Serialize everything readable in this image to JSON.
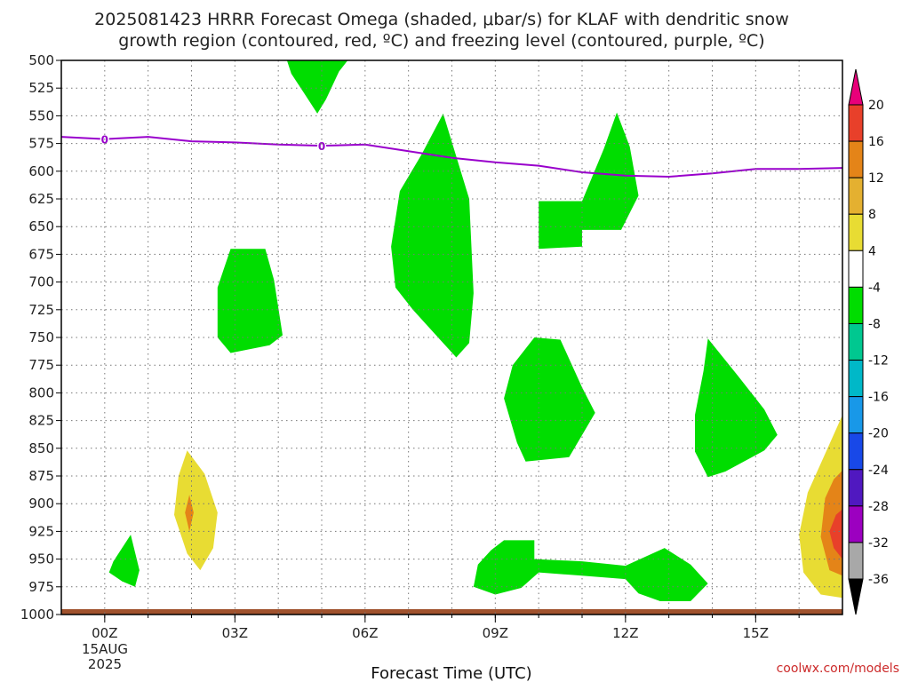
{
  "chart_data": {
    "type": "heatmap",
    "title_lines": [
      "2025081423 HRRR Forecast Omega (shaded, μbar/s) for KLAF with dendritic snow",
      "growth region (contoured, red, ºC) and freezing level (contoured, purple, ºC)"
    ],
    "xlabel": "Forecast Time (UTC)",
    "x_ticks": [
      {
        "label": "00Z",
        "hour": 0
      },
      {
        "label": "03Z",
        "hour": 3
      },
      {
        "label": "06Z",
        "hour": 6
      },
      {
        "label": "09Z",
        "hour": 9
      },
      {
        "label": "12Z",
        "hour": 12
      },
      {
        "label": "15Z",
        "hour": 15
      }
    ],
    "x_subtitle": [
      "15AUG",
      "2025"
    ],
    "xlim": [
      -1,
      17
    ],
    "y_ticks": [
      500,
      525,
      550,
      575,
      600,
      625,
      650,
      675,
      700,
      725,
      750,
      775,
      800,
      825,
      850,
      875,
      900,
      925,
      950,
      975,
      1000
    ],
    "ylim": [
      500,
      1000
    ],
    "freezing_level": {
      "color": "#9900cc",
      "label": "0",
      "points": [
        [
          -1,
          569
        ],
        [
          0,
          571
        ],
        [
          1,
          569
        ],
        [
          2,
          573
        ],
        [
          3,
          574
        ],
        [
          4,
          576
        ],
        [
          5,
          577
        ],
        [
          6,
          576
        ],
        [
          7,
          582
        ],
        [
          8,
          588
        ],
        [
          9,
          592
        ],
        [
          10,
          595
        ],
        [
          11,
          601
        ],
        [
          12,
          604
        ],
        [
          13,
          605
        ],
        [
          14,
          602
        ],
        [
          15,
          598
        ],
        [
          16,
          598
        ],
        [
          17,
          597
        ]
      ]
    },
    "omega_regions": [
      {
        "color": "#00dd00",
        "points": [
          [
            4.2,
            500
          ],
          [
            5.6,
            500
          ],
          [
            5.4,
            510
          ],
          [
            5.1,
            535
          ],
          [
            4.9,
            548
          ],
          [
            4.6,
            530
          ],
          [
            4.3,
            512
          ]
        ]
      },
      {
        "color": "#00dd00",
        "points": [
          [
            2.9,
            670
          ],
          [
            3.7,
            670
          ],
          [
            3.9,
            698
          ],
          [
            4.1,
            748
          ],
          [
            3.8,
            757
          ],
          [
            2.9,
            764
          ],
          [
            2.6,
            750
          ],
          [
            2.6,
            705
          ]
        ]
      },
      {
        "color": "#00dd00",
        "points": [
          [
            7.8,
            548
          ],
          [
            8.4,
            625
          ],
          [
            8.5,
            710
          ],
          [
            8.4,
            755
          ],
          [
            8.1,
            768
          ],
          [
            7.1,
            725
          ],
          [
            6.7,
            705
          ],
          [
            6.6,
            668
          ],
          [
            6.8,
            618
          ],
          [
            7.3,
            585
          ]
        ]
      },
      {
        "color": "#00dd00",
        "points": [
          [
            10.0,
            627
          ],
          [
            11.0,
            627
          ],
          [
            11.0,
            653
          ],
          [
            11.9,
            653
          ],
          [
            12.3,
            622
          ],
          [
            12.1,
            578
          ],
          [
            11.8,
            547
          ],
          [
            11.5,
            580
          ],
          [
            11.0,
            627
          ]
        ]
      },
      {
        "color": "#00dd00",
        "points": [
          [
            10.0,
            627
          ],
          [
            11.0,
            627
          ],
          [
            11.0,
            668
          ],
          [
            10.0,
            670
          ]
        ]
      },
      {
        "color": "#00dd00",
        "points": [
          [
            9.9,
            750
          ],
          [
            10.5,
            752
          ],
          [
            11.0,
            795
          ],
          [
            11.3,
            818
          ],
          [
            10.7,
            858
          ],
          [
            9.7,
            862
          ],
          [
            9.5,
            845
          ],
          [
            9.2,
            805
          ],
          [
            9.4,
            775
          ]
        ]
      },
      {
        "color": "#00dd00",
        "points": [
          [
            13.9,
            751
          ],
          [
            14.6,
            785
          ],
          [
            15.2,
            815
          ],
          [
            15.5,
            838
          ],
          [
            15.2,
            852
          ],
          [
            14.3,
            871
          ],
          [
            13.9,
            876
          ],
          [
            13.6,
            853
          ],
          [
            13.6,
            820
          ],
          [
            13.8,
            780
          ]
        ]
      },
      {
        "color": "#00dd00",
        "points": [
          [
            0.2,
            952
          ],
          [
            0.6,
            928
          ],
          [
            0.8,
            960
          ],
          [
            0.7,
            975
          ],
          [
            0.4,
            970
          ],
          [
            0.1,
            962
          ]
        ]
      },
      {
        "color": "#00dd00",
        "points": [
          [
            9.2,
            933
          ],
          [
            9.9,
            933
          ],
          [
            9.9,
            950
          ],
          [
            11.0,
            952
          ],
          [
            12.0,
            956
          ],
          [
            12.9,
            940
          ],
          [
            13.5,
            955
          ],
          [
            13.9,
            972
          ],
          [
            13.5,
            988
          ],
          [
            12.8,
            988
          ],
          [
            12.3,
            981
          ],
          [
            12.0,
            968
          ],
          [
            11.0,
            965
          ],
          [
            10.0,
            962
          ],
          [
            9.6,
            976
          ],
          [
            9.0,
            982
          ],
          [
            8.5,
            975
          ],
          [
            8.6,
            955
          ],
          [
            8.9,
            942
          ]
        ]
      },
      {
        "color": "#e8dc33",
        "points": [
          [
            1.9,
            852
          ],
          [
            2.3,
            873
          ],
          [
            2.6,
            908
          ],
          [
            2.5,
            940
          ],
          [
            2.2,
            960
          ],
          [
            1.9,
            945
          ],
          [
            1.6,
            910
          ],
          [
            1.7,
            875
          ]
        ]
      },
      {
        "color": "#e48418",
        "points": [
          [
            1.95,
            892
          ],
          [
            2.05,
            908
          ],
          [
            1.95,
            925
          ],
          [
            1.85,
            908
          ]
        ]
      },
      {
        "color": "#e8dc33",
        "points": [
          [
            17.0,
            820
          ],
          [
            17.0,
            985
          ],
          [
            16.5,
            982
          ],
          [
            16.1,
            962
          ],
          [
            16.0,
            928
          ],
          [
            16.2,
            890
          ],
          [
            16.6,
            855
          ]
        ]
      },
      {
        "color": "#e48418",
        "points": [
          [
            17.0,
            870
          ],
          [
            17.0,
            965
          ],
          [
            16.7,
            960
          ],
          [
            16.5,
            930
          ],
          [
            16.6,
            895
          ],
          [
            16.8,
            878
          ]
        ]
      },
      {
        "color": "#e8402a",
        "points": [
          [
            17.0,
            905
          ],
          [
            17.0,
            950
          ],
          [
            16.8,
            940
          ],
          [
            16.7,
            925
          ],
          [
            16.85,
            910
          ]
        ]
      }
    ],
    "terrain_color": "#a0522d",
    "colorbar": {
      "labels": [
        "20",
        "16",
        "12",
        "8",
        "4",
        "-4",
        "-8",
        "-12",
        "-16",
        "-20",
        "-24",
        "-28",
        "-32",
        "-36"
      ],
      "colors": [
        "#e8007a",
        "#e8402a",
        "#e48418",
        "#e4b030",
        "#e8dc33",
        "#ffffff",
        "#00dd00",
        "#00c890",
        "#00b8c8",
        "#1898e8",
        "#1848e8",
        "#5018c0",
        "#9c00c0",
        "#a8a8a8",
        "#000000"
      ]
    }
  },
  "credit": "coolwx.com/models"
}
